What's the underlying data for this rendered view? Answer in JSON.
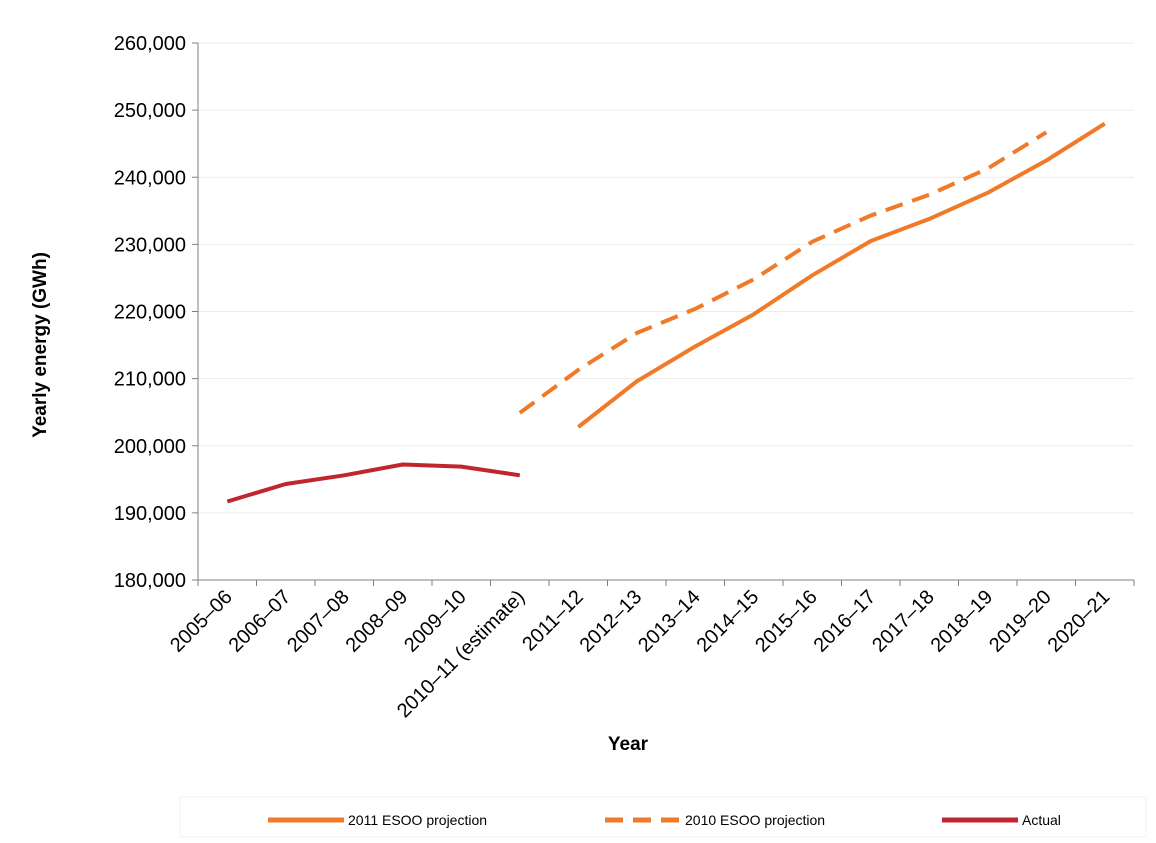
{
  "chart_data": {
    "type": "line",
    "title": "",
    "xlabel": "Year",
    "ylabel": "Yearly energy (GWh)",
    "ylim": [
      180000,
      260000
    ],
    "yticks": [
      180000,
      190000,
      200000,
      210000,
      220000,
      230000,
      240000,
      250000,
      260000
    ],
    "ytick_labels": [
      "180,000",
      "190,000",
      "200,000",
      "210,000",
      "220,000",
      "230,000",
      "240,000",
      "250,000",
      "260,000"
    ],
    "categories": [
      "2005–06",
      "2006–07",
      "2007–08",
      "2008–09",
      "2009–10",
      "2010–11 (estimate)",
      "2011–12",
      "2012–13",
      "2013–14",
      "2014–15",
      "2015–16",
      "2016–17",
      "2017–18",
      "2018–19",
      "2019–20",
      "2020–21"
    ],
    "grid": true,
    "legend_position": "bottom",
    "series": [
      {
        "name": "2011 ESOO projection",
        "color": "#F07A28",
        "dash": "solid",
        "values": [
          null,
          null,
          null,
          null,
          null,
          null,
          202800,
          209600,
          214800,
          219600,
          225400,
          230500,
          233800,
          237700,
          242500,
          248000
        ]
      },
      {
        "name": "2010 ESOO projection",
        "color": "#F07A28",
        "dash": "dashed",
        "values": [
          null,
          null,
          null,
          null,
          null,
          204900,
          211300,
          216800,
          220400,
          224800,
          230400,
          234300,
          237400,
          241300,
          246700,
          null
        ]
      },
      {
        "name": "Actual",
        "color": "#C0262D",
        "dash": "solid",
        "values": [
          191700,
          194300,
          195600,
          197200,
          196900,
          195600,
          null,
          null,
          null,
          null,
          null,
          null,
          null,
          null,
          null,
          null
        ]
      }
    ]
  }
}
